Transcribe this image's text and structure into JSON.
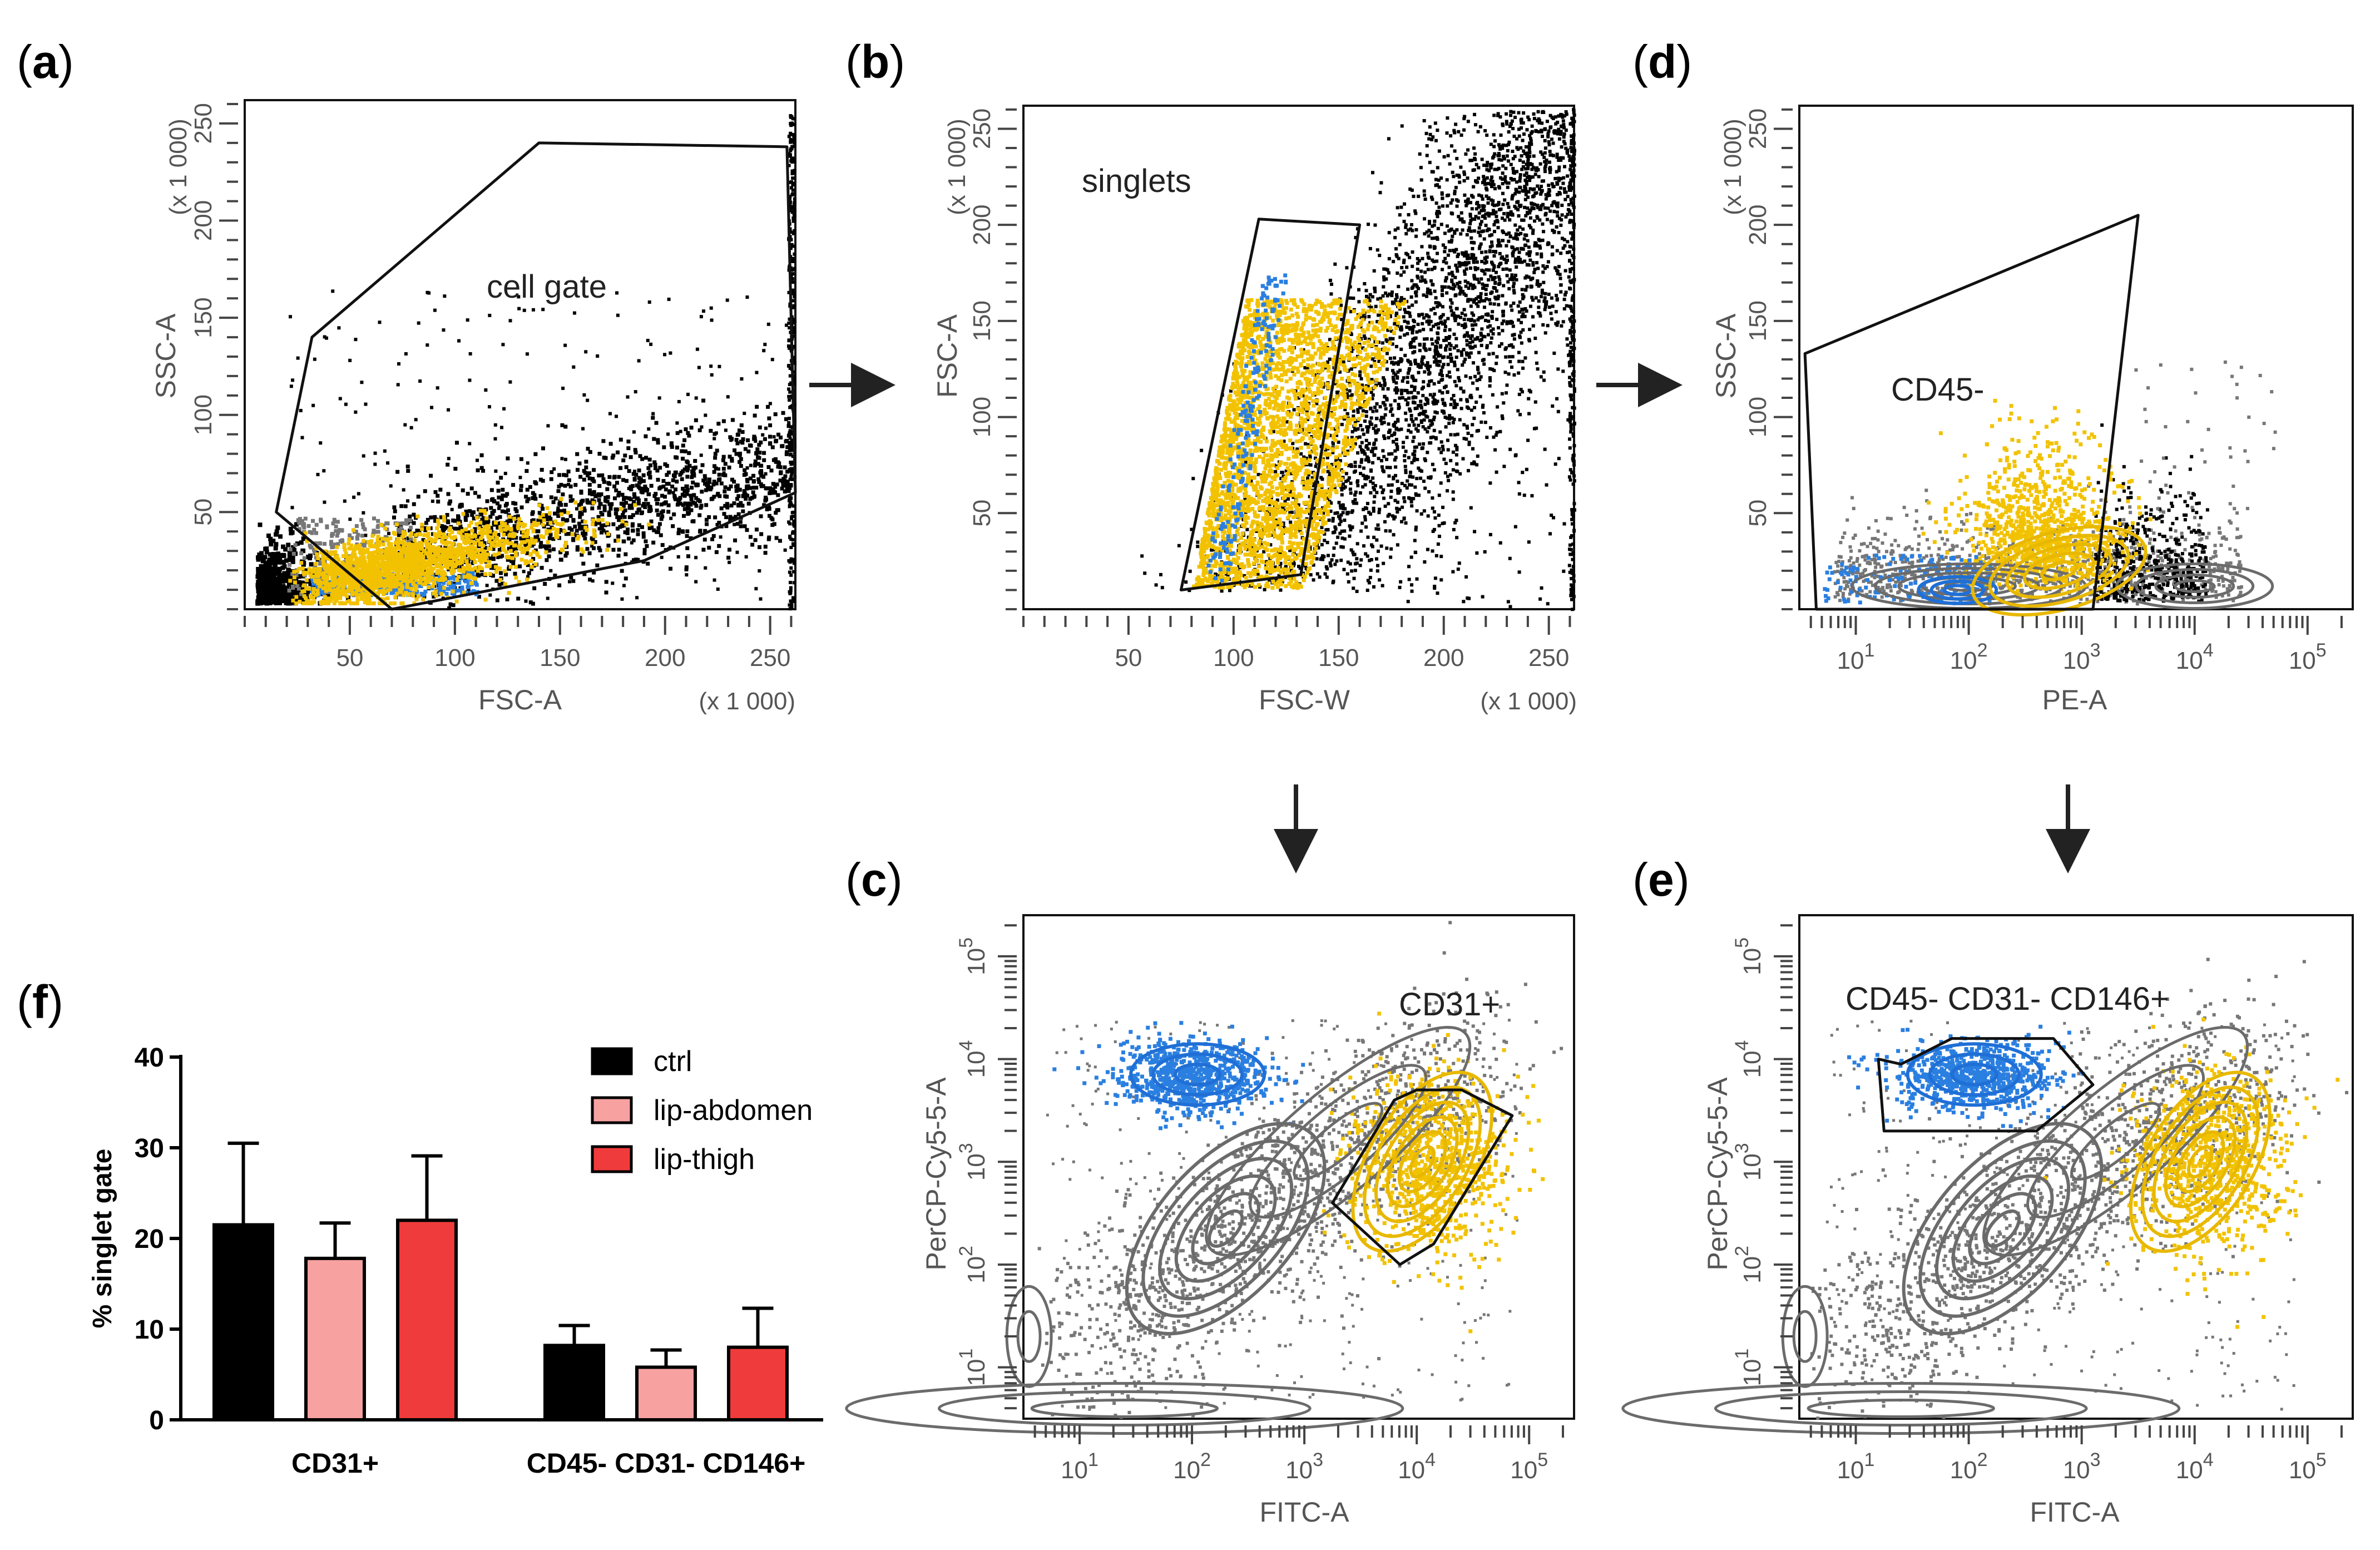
{
  "colors": {
    "dots_black": "#000000",
    "dots_gray": "#777777",
    "dots_yellow": "#f2c200",
    "dots_blue": "#2a7fe0",
    "contour_gray": "#6b6b6b",
    "contour_yellow": "#e8b800",
    "contour_blue": "#1f6fd6",
    "ctrl": "#000000",
    "lip_abdomen": "#f7a1a1",
    "lip_thigh": "#ef3b3b"
  },
  "arrow_icon": "right-and-down-arrows",
  "panels": {
    "a": {
      "open": "(",
      "letter": "a",
      "close": ")",
      "xlabel": "FSC-A",
      "ylabel": "SSC-A",
      "x_scale": "(x 1 000)",
      "y_scale": "(x 1 000)",
      "x_ticks": [
        "50",
        "100",
        "150",
        "200",
        "250"
      ],
      "y_ticks": [
        "50",
        "100",
        "150",
        "200",
        "250"
      ],
      "gate_label": "cell gate"
    },
    "b": {
      "open": "(",
      "letter": "b",
      "close": ")",
      "xlabel": "FSC-W",
      "ylabel": "FSC-A",
      "x_scale": "(x 1 000)",
      "y_scale": "(x 1 000)",
      "x_ticks": [
        "50",
        "100",
        "150",
        "200",
        "250"
      ],
      "y_ticks": [
        "50",
        "100",
        "150",
        "200",
        "250"
      ],
      "gate_label": "singlets"
    },
    "d": {
      "open": "(",
      "letter": "d",
      "close": ")",
      "xlabel": "PE-A",
      "ylabel": "SSC-A",
      "y_scale": "(x 1 000)",
      "x_ticks": [
        "1",
        "2",
        "3",
        "4",
        "5"
      ],
      "y_ticks": [
        "50",
        "100",
        "150",
        "200",
        "250"
      ],
      "gate_label": "CD45-"
    },
    "c": {
      "open": "(",
      "letter": "c",
      "close": ")",
      "xlabel": "FITC-A",
      "ylabel": "PerCP-Cy5-5-A",
      "x_ticks": [
        "1",
        "2",
        "3",
        "4",
        "5"
      ],
      "y_ticks": [
        "1",
        "2",
        "3",
        "4",
        "5"
      ],
      "gate_label": "CD31+"
    },
    "e": {
      "open": "(",
      "letter": "e",
      "close": ")",
      "xlabel": "FITC-A",
      "ylabel": "PerCP-Cy5-5-A",
      "x_ticks": [
        "1",
        "2",
        "3",
        "4",
        "5"
      ],
      "y_ticks": [
        "1",
        "2",
        "3",
        "4",
        "5"
      ],
      "gate_label": "CD45- CD31- CD146+"
    },
    "f": {
      "open": "(",
      "letter": "f",
      "close": ")"
    }
  },
  "log_base": "10",
  "chart_data": [
    {
      "panel": "a",
      "type": "scatter",
      "xlabel": "FSC-A",
      "ylabel": "SSC-A",
      "xlim": [
        0,
        262
      ],
      "ylim": [
        0,
        262
      ],
      "gate": {
        "name": "cell gate",
        "polygon": [
          [
            15,
            50
          ],
          [
            32,
            140
          ],
          [
            140,
            240
          ],
          [
            258,
            238
          ],
          [
            262,
            60
          ],
          [
            190,
            25
          ],
          [
            70,
            0
          ]
        ]
      }
    },
    {
      "panel": "b",
      "type": "scatter",
      "xlabel": "FSC-W",
      "ylabel": "FSC-A",
      "xlim": [
        0,
        262
      ],
      "ylim": [
        0,
        262
      ],
      "gate": {
        "name": "singlets",
        "polygon": [
          [
            75,
            10
          ],
          [
            112,
            203
          ],
          [
            160,
            200
          ],
          [
            132,
            18
          ]
        ]
      }
    },
    {
      "panel": "d",
      "type": "scatter",
      "xlabel": "PE-A",
      "ylabel": "SSC-A",
      "xlim_log10": [
        0.5,
        5.4
      ],
      "ylim": [
        0,
        262
      ],
      "gate": {
        "name": "CD45-",
        "polygon": [
          [
            0.55,
            133
          ],
          [
            3.5,
            205
          ],
          [
            3.1,
            0
          ],
          [
            0.65,
            0
          ]
        ]
      }
    },
    {
      "panel": "c",
      "type": "scatter",
      "xlabel": "FITC-A",
      "ylabel": "PerCP-Cy5-5-A",
      "xlim_log10": [
        0.5,
        5.4
      ],
      "ylim_log10": [
        0.5,
        5.4
      ],
      "gate": {
        "name": "CD31+",
        "polygon": [
          [
            3.25,
            2.6
          ],
          [
            3.8,
            3.6
          ],
          [
            4.0,
            3.7
          ],
          [
            4.4,
            3.7
          ],
          [
            4.85,
            3.45
          ],
          [
            4.15,
            2.2
          ],
          [
            3.85,
            2.0
          ]
        ]
      }
    },
    {
      "panel": "e",
      "type": "scatter",
      "xlabel": "FITC-A",
      "ylabel": "PerCP-Cy5-5-A",
      "xlim_log10": [
        0.5,
        5.4
      ],
      "ylim_log10": [
        0.5,
        5.4
      ],
      "gate": {
        "name": "CD45- CD31- CD146+",
        "polygon": [
          [
            1.2,
            4.0
          ],
          [
            1.4,
            3.95
          ],
          [
            1.85,
            4.2
          ],
          [
            2.75,
            4.2
          ],
          [
            3.1,
            3.75
          ],
          [
            2.6,
            3.3
          ],
          [
            1.25,
            3.3
          ]
        ]
      }
    },
    {
      "panel": "f",
      "type": "bar",
      "categories": [
        "CD31+",
        "CD45- CD31- CD146+"
      ],
      "series": [
        {
          "name": "ctrl",
          "values": [
            21.5,
            8.2
          ],
          "errors": [
            9.0,
            2.2
          ]
        },
        {
          "name": "lip-abdomen",
          "values": [
            17.8,
            5.8
          ],
          "errors": [
            3.9,
            1.9
          ]
        },
        {
          "name": "lip-thigh",
          "values": [
            22.0,
            8.0
          ],
          "errors": [
            7.1,
            4.3
          ]
        }
      ],
      "ylabel": "% singlet gate",
      "ylim": [
        0,
        40
      ],
      "yticks": [
        "0",
        "10",
        "20",
        "30",
        "40"
      ]
    }
  ]
}
